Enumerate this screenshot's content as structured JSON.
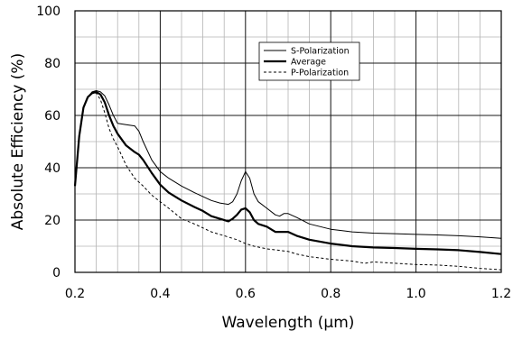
{
  "chart_data": {
    "type": "line",
    "title": "",
    "xlabel": "Wavelength (µm)",
    "ylabel": "Absolute Efficiency (%)",
    "xlim": [
      0.2,
      1.2
    ],
    "ylim": [
      0,
      100
    ],
    "x_ticks": [
      0.2,
      0.4,
      0.6,
      0.8,
      1.0,
      1.2
    ],
    "x_tick_labels": [
      "0.2",
      "0.4",
      "0.6",
      "0.8",
      "1.0",
      "1.2"
    ],
    "y_ticks": [
      0,
      20,
      40,
      60,
      80,
      100
    ],
    "y_tick_labels": [
      "0",
      "20",
      "40",
      "60",
      "80",
      "100"
    ],
    "x_minor_step": 0.05,
    "y_minor_step": 10,
    "grid": true,
    "legend": "top-center",
    "series": [
      {
        "name": "S-Polarization",
        "style": "thin-solid",
        "color": "#000000",
        "points": [
          [
            0.2,
            33
          ],
          [
            0.21,
            52
          ],
          [
            0.22,
            63
          ],
          [
            0.23,
            67
          ],
          [
            0.24,
            69
          ],
          [
            0.25,
            69.5
          ],
          [
            0.26,
            69
          ],
          [
            0.27,
            67.5
          ],
          [
            0.28,
            64
          ],
          [
            0.29,
            60
          ],
          [
            0.3,
            57
          ],
          [
            0.32,
            56.5
          ],
          [
            0.34,
            56
          ],
          [
            0.35,
            54
          ],
          [
            0.36,
            50
          ],
          [
            0.38,
            43
          ],
          [
            0.4,
            38.5
          ],
          [
            0.42,
            36
          ],
          [
            0.45,
            33
          ],
          [
            0.48,
            30.5
          ],
          [
            0.5,
            29
          ],
          [
            0.52,
            27.5
          ],
          [
            0.54,
            26.5
          ],
          [
            0.56,
            26
          ],
          [
            0.57,
            27
          ],
          [
            0.58,
            30
          ],
          [
            0.59,
            35
          ],
          [
            0.6,
            38.5
          ],
          [
            0.61,
            36
          ],
          [
            0.62,
            30
          ],
          [
            0.63,
            27
          ],
          [
            0.65,
            24.5
          ],
          [
            0.67,
            22
          ],
          [
            0.68,
            21.5
          ],
          [
            0.69,
            22.5
          ],
          [
            0.7,
            22.5
          ],
          [
            0.72,
            21
          ],
          [
            0.75,
            18.5
          ],
          [
            0.8,
            16.5
          ],
          [
            0.85,
            15.5
          ],
          [
            0.9,
            15
          ],
          [
            0.95,
            14.8
          ],
          [
            1.0,
            14.5
          ],
          [
            1.05,
            14.3
          ],
          [
            1.1,
            14
          ],
          [
            1.15,
            13.6
          ],
          [
            1.2,
            13
          ]
        ]
      },
      {
        "name": "Average",
        "style": "thick-solid",
        "color": "#000000",
        "points": [
          [
            0.2,
            33
          ],
          [
            0.21,
            52
          ],
          [
            0.22,
            63
          ],
          [
            0.23,
            67
          ],
          [
            0.24,
            68.5
          ],
          [
            0.25,
            69
          ],
          [
            0.26,
            68
          ],
          [
            0.27,
            65
          ],
          [
            0.28,
            60
          ],
          [
            0.29,
            56
          ],
          [
            0.3,
            53
          ],
          [
            0.32,
            48.5
          ],
          [
            0.34,
            46
          ],
          [
            0.35,
            45
          ],
          [
            0.36,
            43
          ],
          [
            0.38,
            38
          ],
          [
            0.4,
            33.5
          ],
          [
            0.42,
            30.5
          ],
          [
            0.45,
            27.5
          ],
          [
            0.48,
            25
          ],
          [
            0.5,
            23.5
          ],
          [
            0.52,
            21.5
          ],
          [
            0.54,
            20.5
          ],
          [
            0.56,
            19.5
          ],
          [
            0.57,
            20.5
          ],
          [
            0.58,
            22
          ],
          [
            0.59,
            24
          ],
          [
            0.6,
            24.5
          ],
          [
            0.61,
            23
          ],
          [
            0.62,
            20
          ],
          [
            0.63,
            18.5
          ],
          [
            0.65,
            17.5
          ],
          [
            0.67,
            15.5
          ],
          [
            0.7,
            15.5
          ],
          [
            0.72,
            14
          ],
          [
            0.75,
            12.5
          ],
          [
            0.8,
            11
          ],
          [
            0.85,
            10
          ],
          [
            0.9,
            9.5
          ],
          [
            0.95,
            9.3
          ],
          [
            1.0,
            9
          ],
          [
            1.05,
            8.8
          ],
          [
            1.1,
            8.5
          ],
          [
            1.15,
            7.8
          ],
          [
            1.2,
            7
          ]
        ]
      },
      {
        "name": "P-Polarization",
        "style": "dashed",
        "color": "#000000",
        "points": [
          [
            0.2,
            33
          ],
          [
            0.21,
            52
          ],
          [
            0.22,
            63
          ],
          [
            0.23,
            67
          ],
          [
            0.24,
            68.5
          ],
          [
            0.25,
            68.5
          ],
          [
            0.26,
            66
          ],
          [
            0.27,
            61
          ],
          [
            0.28,
            55
          ],
          [
            0.29,
            51
          ],
          [
            0.3,
            48
          ],
          [
            0.32,
            41
          ],
          [
            0.34,
            36
          ],
          [
            0.36,
            33
          ],
          [
            0.38,
            29.5
          ],
          [
            0.4,
            27
          ],
          [
            0.42,
            24.5
          ],
          [
            0.45,
            20.5
          ],
          [
            0.48,
            18.5
          ],
          [
            0.5,
            17
          ],
          [
            0.52,
            15.5
          ],
          [
            0.55,
            14
          ],
          [
            0.58,
            12.5
          ],
          [
            0.6,
            11
          ],
          [
            0.62,
            10
          ],
          [
            0.65,
            9
          ],
          [
            0.7,
            8
          ],
          [
            0.72,
            7
          ],
          [
            0.75,
            6
          ],
          [
            0.8,
            5
          ],
          [
            0.85,
            4.3
          ],
          [
            0.88,
            3.5
          ],
          [
            0.9,
            4
          ],
          [
            0.95,
            3.5
          ],
          [
            1.0,
            3
          ],
          [
            1.05,
            2.8
          ],
          [
            1.1,
            2.3
          ],
          [
            1.15,
            1.5
          ],
          [
            1.2,
            1
          ]
        ]
      }
    ]
  }
}
